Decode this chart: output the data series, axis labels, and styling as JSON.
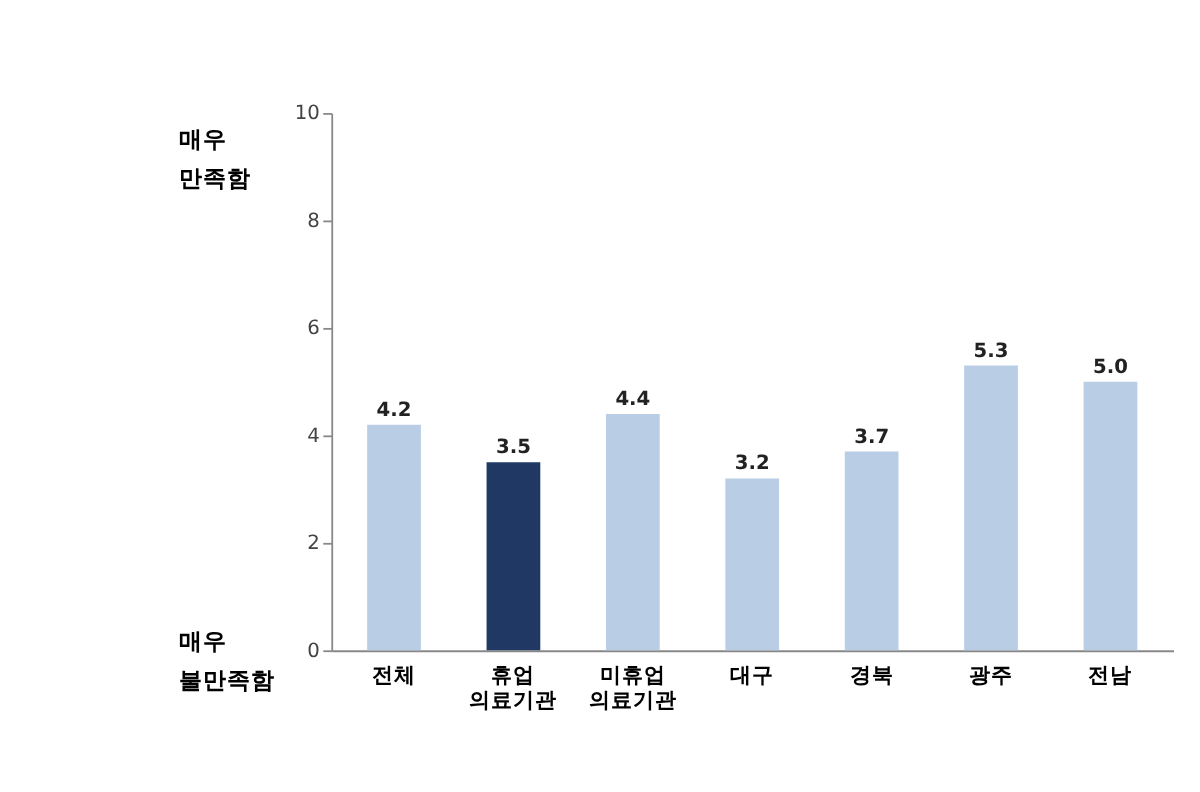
{
  "chart_data": {
    "type": "bar",
    "categories": [
      "전체",
      "휴업 의료기관",
      "미휴업 의료기관",
      "대구",
      "경북",
      "광주",
      "전남"
    ],
    "values": [
      4.2,
      3.5,
      4.4,
      3.2,
      3.7,
      5.3,
      5.0
    ],
    "colors": [
      "#b9cde5",
      "#1f3864",
      "#b9cde5",
      "#b9cde5",
      "#b9cde5",
      "#b9cde5",
      "#b9cde5"
    ],
    "ylim": [
      0,
      10
    ],
    "yticks": [
      0,
      2,
      4,
      6,
      8,
      10
    ],
    "annotations": [
      "매우 만족함",
      "매우 불만족함"
    ],
    "value_labels": [
      "4.2",
      "3.5",
      "4.4",
      "3.2",
      "3.7",
      "5.3",
      "5.0"
    ],
    "grid": false
  }
}
